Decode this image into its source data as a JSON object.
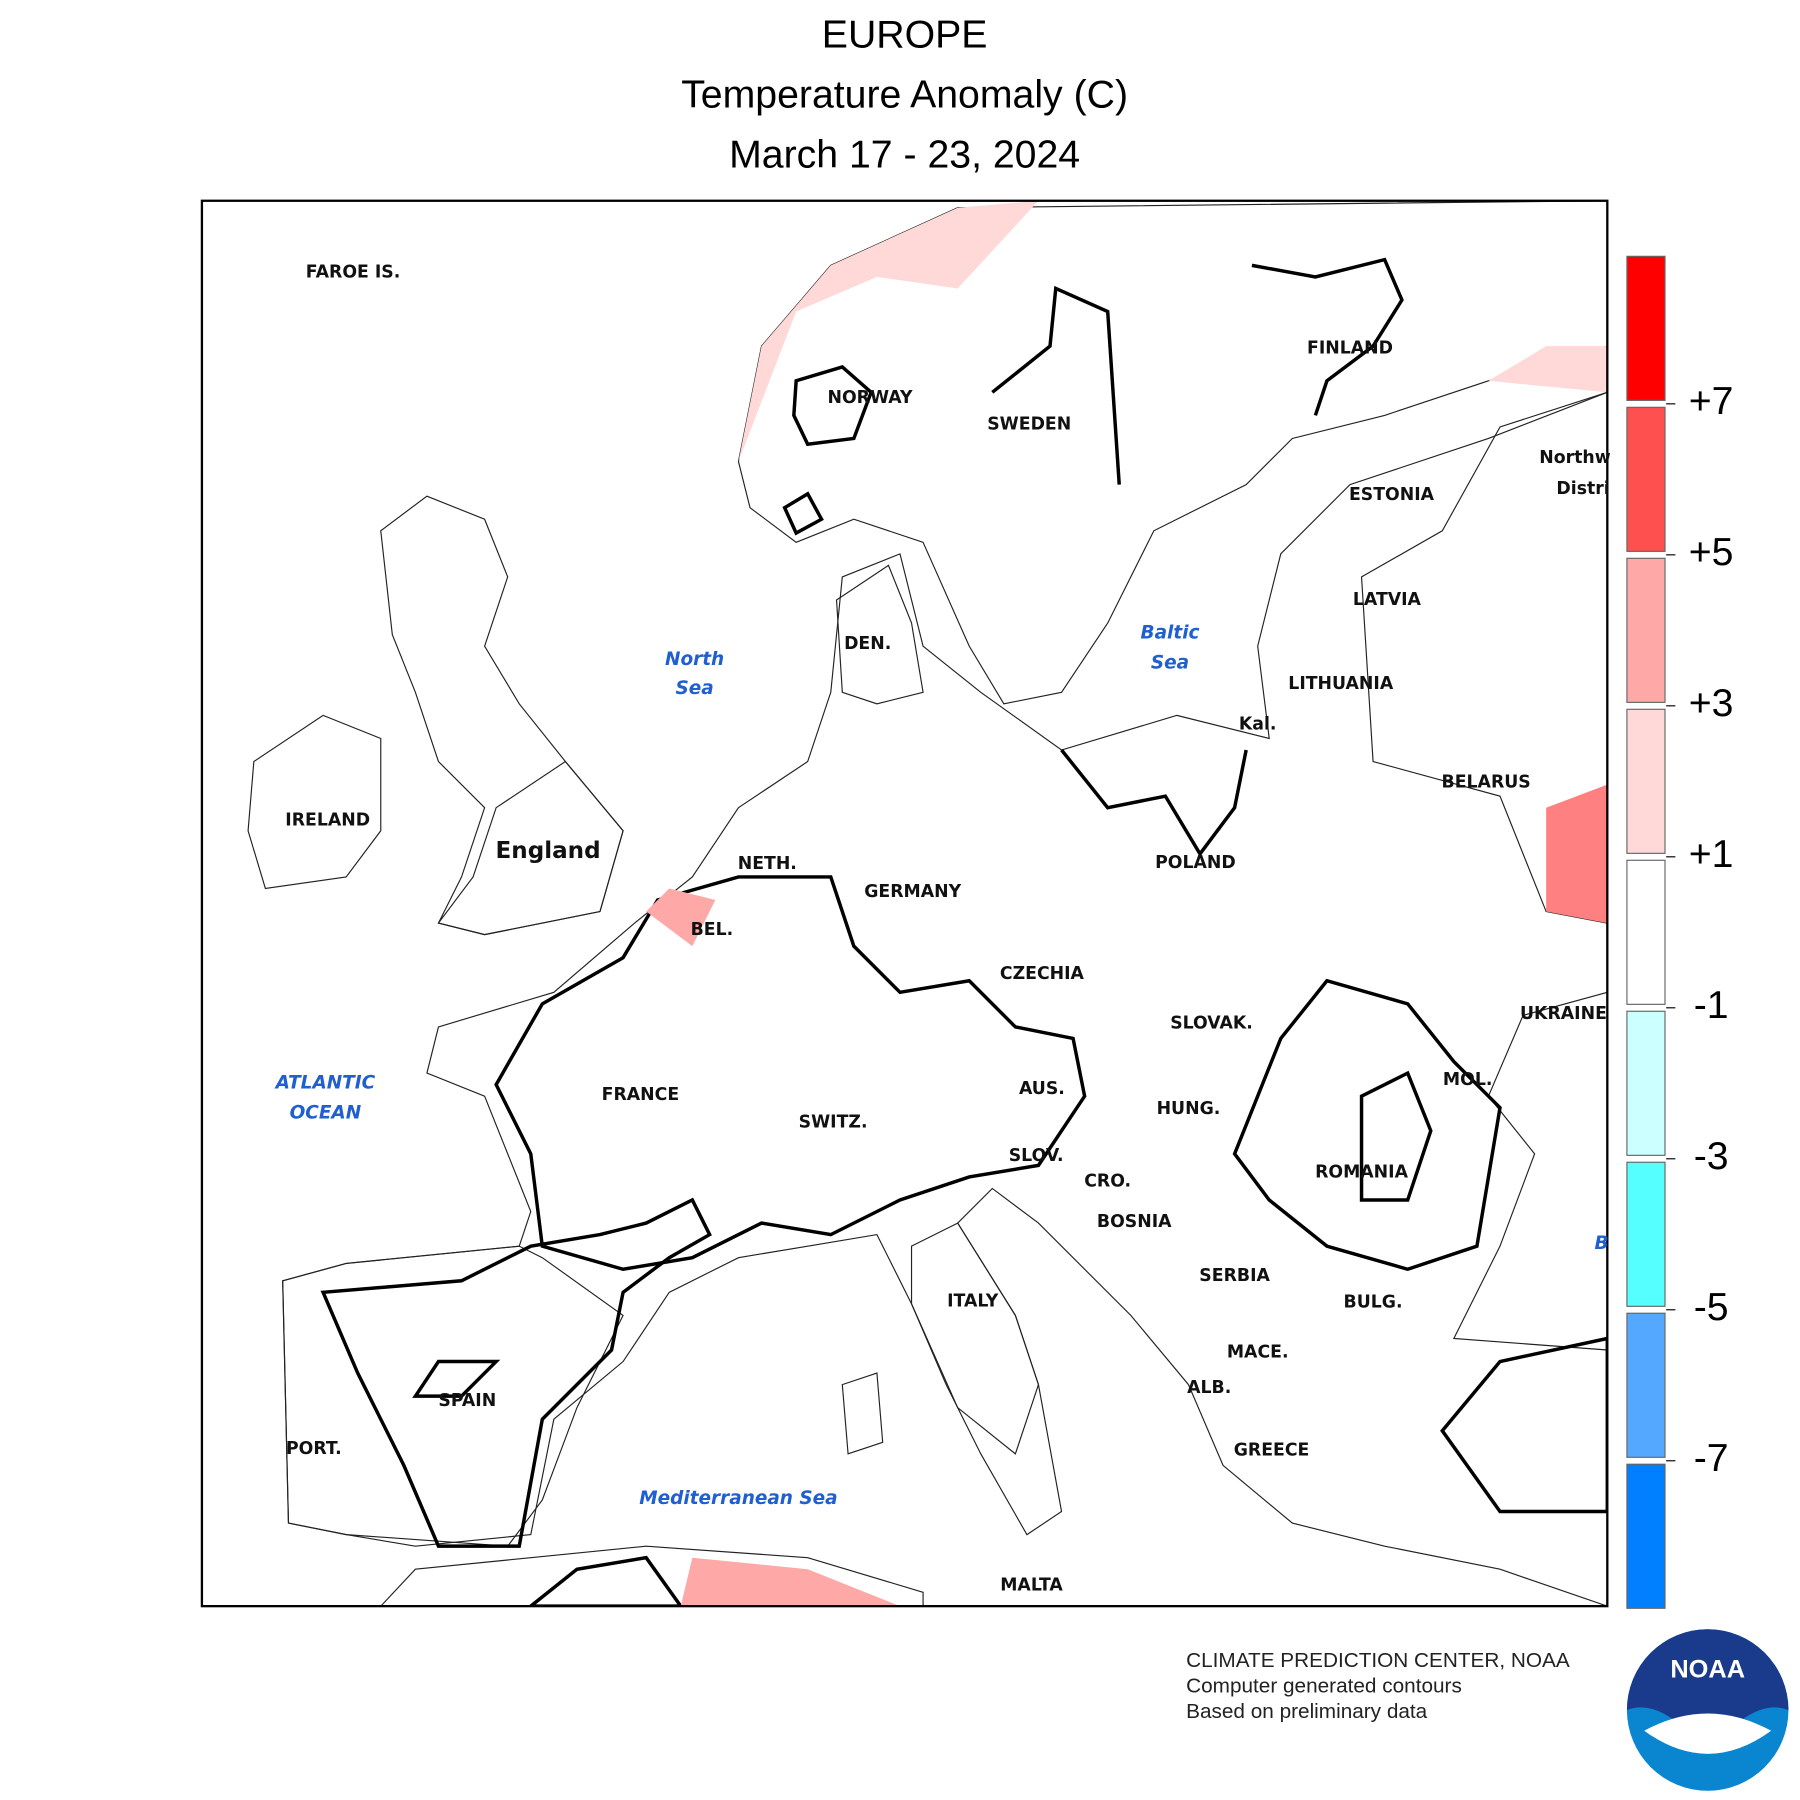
{
  "header": {
    "title": "EUROPE",
    "subtitle": "Temperature Anomaly (C)",
    "dates": "March 17 - 23, 2024"
  },
  "map": {
    "places": [
      "FAROE IS.",
      "NORWAY",
      "SWEDEN",
      "FINLAND",
      "ESTONIA",
      "LATVIA",
      "LITHUANIA",
      "Kal.",
      "DEN.",
      "IRELAND",
      "England",
      "NETH.",
      "GERMANY",
      "POLAND",
      "BELARUS",
      "BEL.",
      "CZECHIA",
      "SLOVAK.",
      "UKRAINE",
      "FRANCE",
      "AUS.",
      "HUNG.",
      "MOL.",
      "SWITZ.",
      "SLOV.",
      "ROMANIA",
      "CRO.",
      "BOSNIA",
      "SERBIA",
      "ITALY",
      "BULG.",
      "MACE.",
      "ALB.",
      "SPAIN",
      "PORT.",
      "GREECE",
      "MALTA",
      "Northw",
      "Distri"
    ],
    "seas": [
      "North",
      "Sea",
      "Baltic",
      "Sea",
      "ATLANTIC",
      "OCEAN",
      "Mediterranean Sea",
      "B"
    ]
  },
  "legend": {
    "colors": [
      "#ff0000",
      "#ff5050",
      "#ffa8a8",
      "#ffd8d8",
      "#ffffff",
      "#ccffff",
      "#55ffff",
      "#55a8ff",
      "#0080ff"
    ],
    "ticks": [
      {
        "value": 7,
        "label": "+7"
      },
      {
        "value": 5,
        "label": "+5"
      },
      {
        "value": 3,
        "label": "+3"
      },
      {
        "value": 1,
        "label": "+1"
      },
      -1,
      -3,
      -5,
      -7
    ]
  },
  "credits": [
    "CLIMATE PREDICTION CENTER, NOAA",
    "Computer generated contours",
    "Based on preliminary data"
  ],
  "logo": "NOAA"
}
